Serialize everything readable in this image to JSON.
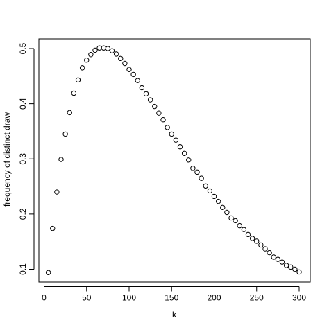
{
  "chart_data": {
    "type": "scatter",
    "title": "",
    "xlabel": "k",
    "ylabel": "frequency of distinct draw",
    "xlim": [
      0,
      300
    ],
    "ylim": [
      0.1,
      0.5
    ],
    "xticks": [
      0,
      50,
      100,
      150,
      200,
      250,
      300
    ],
    "yticks": [
      0.1,
      0.2,
      0.3,
      0.4,
      0.5
    ],
    "xtick_labels": [
      "0",
      "50",
      "100",
      "150",
      "200",
      "250",
      "300"
    ],
    "ytick_labels": [
      "0.1",
      "0.2",
      "0.3",
      "0.4",
      "0.5"
    ],
    "grid": false,
    "legend": "none",
    "marker": "open-circle",
    "series": [
      {
        "x": [
          5,
          10,
          15,
          20,
          25,
          30,
          35,
          40,
          45,
          50,
          55,
          60,
          65,
          70,
          75,
          80,
          85,
          90,
          95,
          100,
          105,
          110,
          115,
          120,
          125,
          130,
          135,
          140,
          145,
          150,
          155,
          160,
          165,
          170,
          175,
          180,
          185,
          190,
          195,
          200,
          205,
          210,
          215,
          220,
          225,
          230,
          235,
          240,
          245,
          250,
          255,
          260,
          265,
          270,
          275,
          280,
          285,
          290,
          295,
          300
        ],
        "y": [
          0.094,
          0.174,
          0.24,
          0.299,
          0.345,
          0.384,
          0.419,
          0.443,
          0.465,
          0.479,
          0.489,
          0.497,
          0.501,
          0.501,
          0.5,
          0.496,
          0.49,
          0.482,
          0.473,
          0.462,
          0.453,
          0.442,
          0.429,
          0.418,
          0.407,
          0.395,
          0.383,
          0.371,
          0.357,
          0.345,
          0.334,
          0.322,
          0.31,
          0.298,
          0.283,
          0.276,
          0.265,
          0.251,
          0.242,
          0.232,
          0.223,
          0.212,
          0.203,
          0.193,
          0.188,
          0.179,
          0.172,
          0.163,
          0.156,
          0.151,
          0.144,
          0.137,
          0.13,
          0.122,
          0.118,
          0.113,
          0.107,
          0.104,
          0.1,
          0.095
        ]
      }
    ]
  }
}
